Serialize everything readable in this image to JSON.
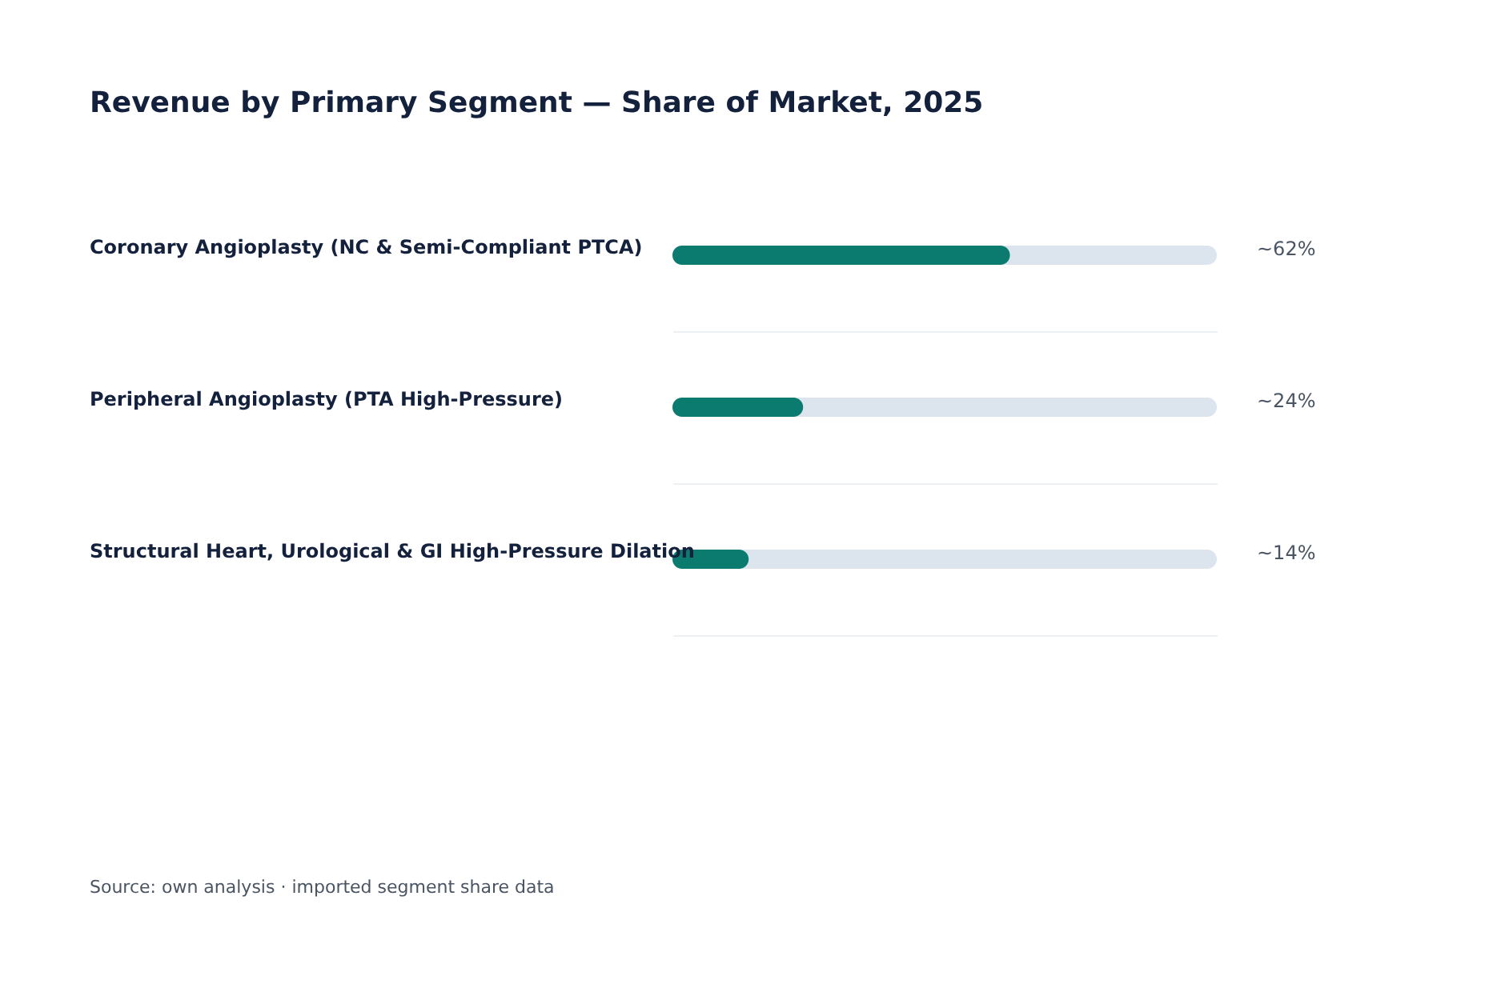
{
  "chart_data": {
    "type": "bar",
    "orientation": "horizontal",
    "title": "Revenue by Primary Segment — Share of Market, 2025",
    "categories": [
      "Coronary Angioplasty (NC & Semi-Compliant PTCA)",
      "Peripheral Angioplasty (PTA High-Pressure)",
      "Structural Heart, Urological & GI High-Pressure Dilation"
    ],
    "series": [
      {
        "color": "#0b7b6f",
        "values": [
          62,
          24,
          14
        ],
        "value_labels": [
          "~62%",
          "~24%",
          "~14%"
        ]
      }
    ],
    "xlim": [
      0,
      100
    ],
    "tick_labels": false,
    "grid": "y",
    "annotations": [
      "Source: own analysis · imported segment share data"
    ]
  }
}
